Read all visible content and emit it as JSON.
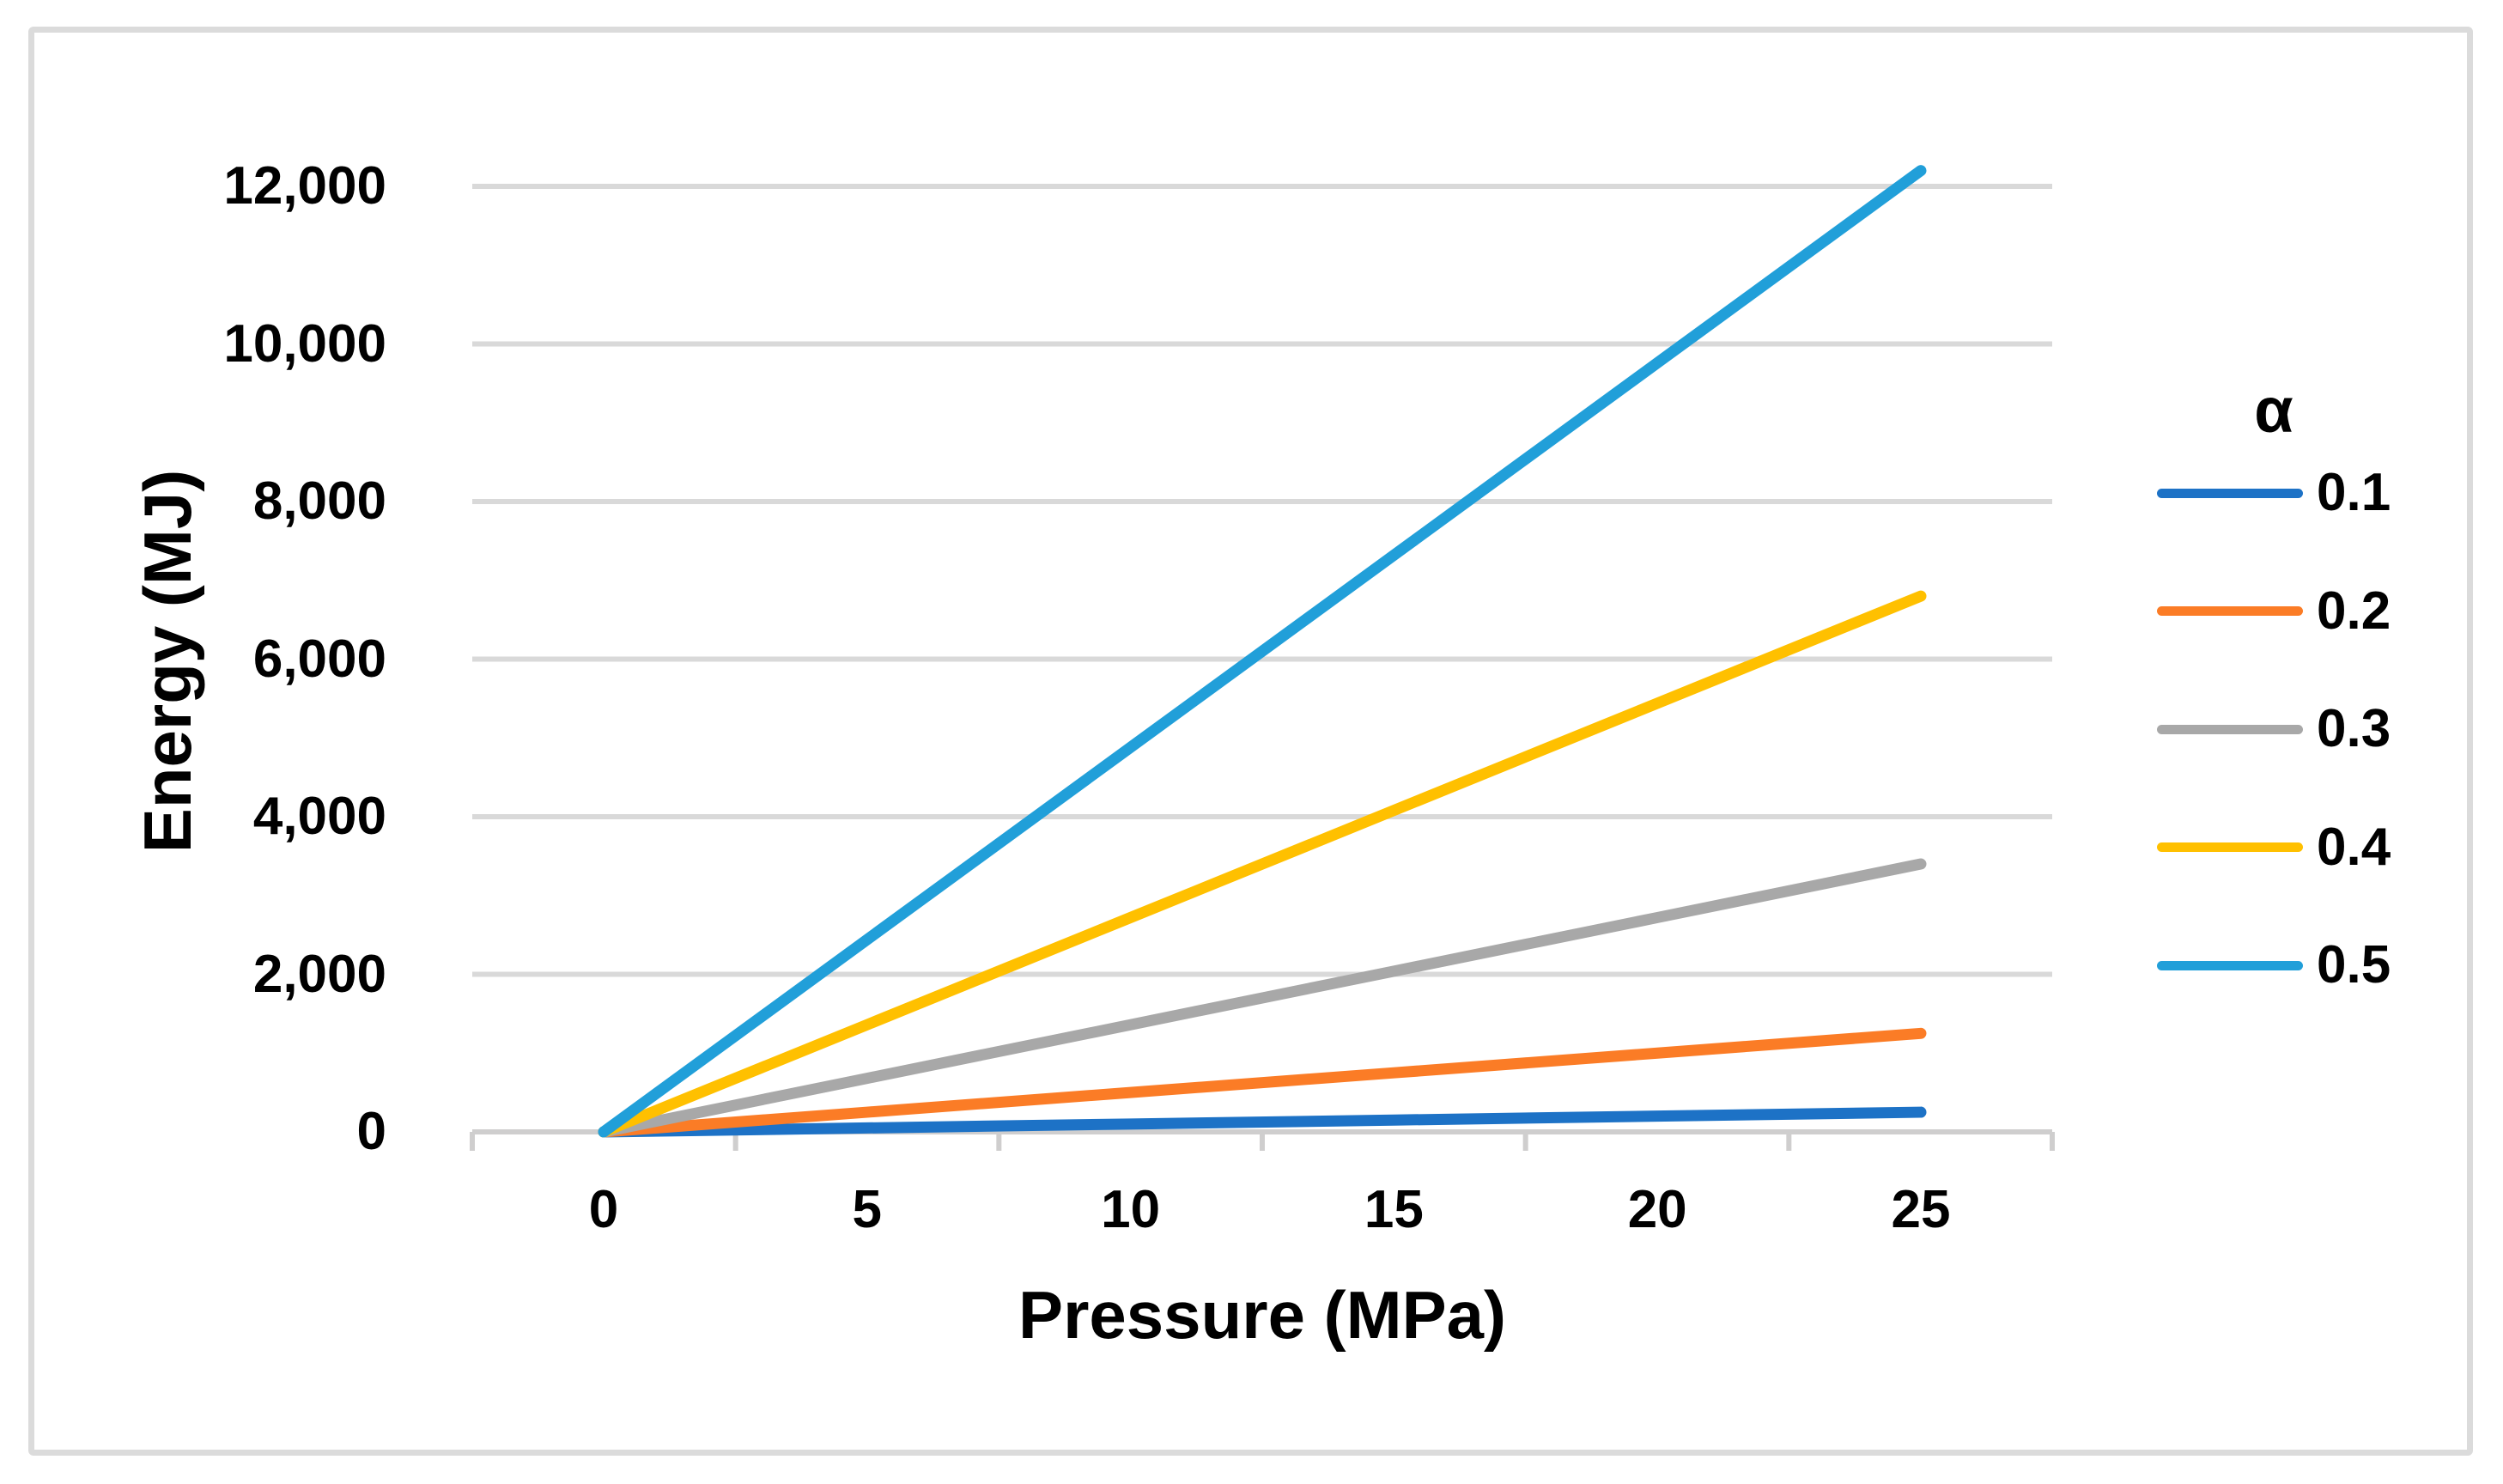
{
  "figure": {
    "background_color": "#FFFFFF",
    "border_color": "#DBDBDB",
    "gridline_color": "#D9D9D9",
    "axis_line_color": "#CFCECE",
    "text_color": "#000000"
  },
  "chart_data": {
    "type": "line",
    "title": "",
    "xlabel": "Pressure (MPa)",
    "ylabel": "Energy (MJ)",
    "x": [
      0,
      5,
      10,
      15,
      20,
      25
    ],
    "x_tick_labels": [
      "0",
      "5",
      "10",
      "15",
      "20",
      "25"
    ],
    "y_ticks": [
      0,
      2000,
      4000,
      6000,
      8000,
      10000,
      12000
    ],
    "y_tick_labels": [
      "0",
      "2,000",
      "4,000",
      "6,000",
      "8,000",
      "10,000",
      "12,000"
    ],
    "ylim": [
      0,
      12400
    ],
    "xlim": [
      -2.5,
      27.5
    ],
    "grid": "horizontal",
    "legend": {
      "title": "α",
      "position": "right"
    },
    "series": [
      {
        "name": "0.1",
        "color": "#1D72C6",
        "values": [
          0,
          50,
          100,
          150,
          200,
          250
        ]
      },
      {
        "name": "0.2",
        "color": "#FB7C26",
        "values": [
          0,
          250,
          500,
          750,
          1000,
          1250
        ]
      },
      {
        "name": "0.3",
        "color": "#A8A8A8",
        "values": [
          0,
          680,
          1360,
          2040,
          2720,
          3400
        ]
      },
      {
        "name": "0.4",
        "color": "#FFC000",
        "values": [
          0,
          1360,
          2720,
          4080,
          5440,
          6800
        ]
      },
      {
        "name": "0.5",
        "color": "#219FD9",
        "values": [
          0,
          2440,
          4880,
          7320,
          9760,
          12200
        ]
      }
    ]
  }
}
